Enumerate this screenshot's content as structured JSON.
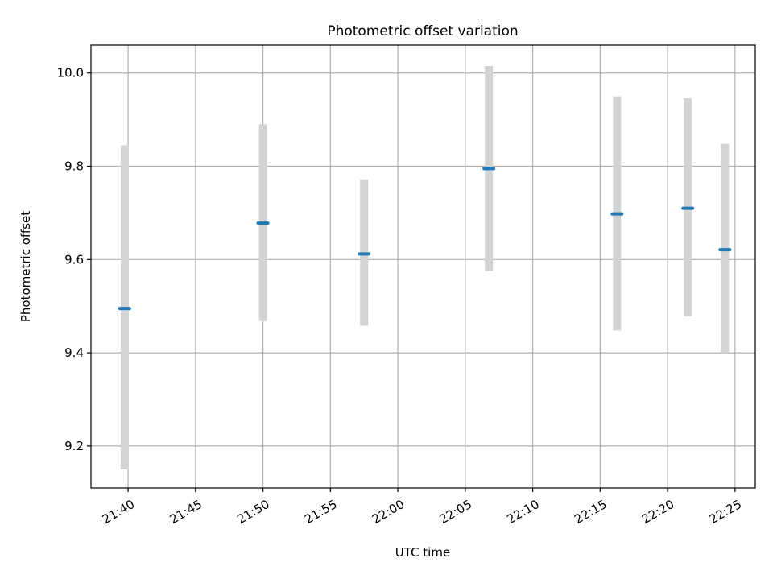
{
  "chart_data": {
    "type": "scatter",
    "title": "Photometric offset variation",
    "xlabel": "UTC time",
    "ylabel": "Photometric offset",
    "x_axis_kind": "time",
    "xlim": [
      "21:37:15",
      "22:26:30"
    ],
    "ylim": [
      9.11,
      10.06
    ],
    "x_ticks": [
      "21:40",
      "21:45",
      "21:50",
      "21:55",
      "22:00",
      "22:05",
      "22:10",
      "22:15",
      "22:20",
      "22:25"
    ],
    "y_ticks": [
      9.2,
      9.4,
      9.6,
      9.8,
      10.0
    ],
    "y_tick_labels": [
      "9.2",
      "9.4",
      "9.6",
      "9.8",
      "10.0"
    ],
    "grid": true,
    "series": [
      {
        "points": [
          {
            "x": "21:39:45",
            "y": 9.495,
            "err_low": 9.15,
            "err_high": 9.845
          },
          {
            "x": "21:50:00",
            "y": 9.678,
            "err_low": 9.468,
            "err_high": 9.89
          },
          {
            "x": "21:57:30",
            "y": 9.612,
            "err_low": 9.458,
            "err_high": 9.772
          },
          {
            "x": "22:06:45",
            "y": 9.795,
            "err_low": 9.575,
            "err_high": 10.015
          },
          {
            "x": "22:16:15",
            "y": 9.698,
            "err_low": 9.448,
            "err_high": 9.95
          },
          {
            "x": "22:21:30",
            "y": 9.71,
            "err_low": 9.478,
            "err_high": 9.946
          },
          {
            "x": "22:24:15",
            "y": 9.621,
            "err_low": 9.4,
            "err_high": 9.848
          }
        ]
      }
    ],
    "colors": {
      "marker": "#1f77b4",
      "errorbar": "#d3d3d3",
      "grid": "#b0b0b0",
      "axes": "#000000"
    }
  }
}
